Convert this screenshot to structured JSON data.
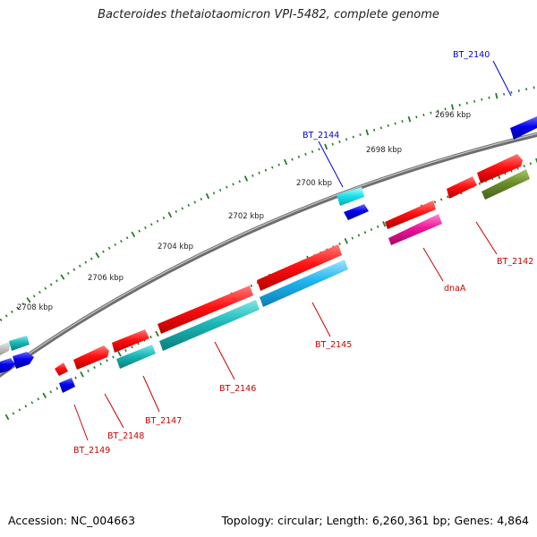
{
  "title": "Bacteroides thetaiotaomicron VPI-5482, complete genome",
  "footer": {
    "accession": "Accession: NC_004663",
    "summary": "Topology: circular; Length: 6,260,361 bp; Genes: 4,864"
  },
  "colors": {
    "backbone": "#888888",
    "tick": "#2a7a2a",
    "label_blue": "#0000cc",
    "label_red": "#cc0000"
  },
  "kbp_labels": [
    "2708 kbp",
    "2706 kbp",
    "2704 kbp",
    "2702 kbp",
    "2700 kbp",
    "2698 kbp",
    "2696 kbp"
  ],
  "genes": [
    {
      "label": "BT_2140",
      "color": "#0000cc"
    },
    {
      "label": "BT_2144",
      "color": "#0000cc"
    },
    {
      "label": "BT_2142",
      "color": "#cc0000"
    },
    {
      "label": "dnaA",
      "color": "#cc0000"
    },
    {
      "label": "BT_2145",
      "color": "#cc0000"
    },
    {
      "label": "BT_2146",
      "color": "#cc0000"
    },
    {
      "label": "BT_2147",
      "color": "#cc0000"
    },
    {
      "label": "BT_2148",
      "color": "#cc0000"
    },
    {
      "label": "BT_2149",
      "color": "#cc0000"
    }
  ]
}
